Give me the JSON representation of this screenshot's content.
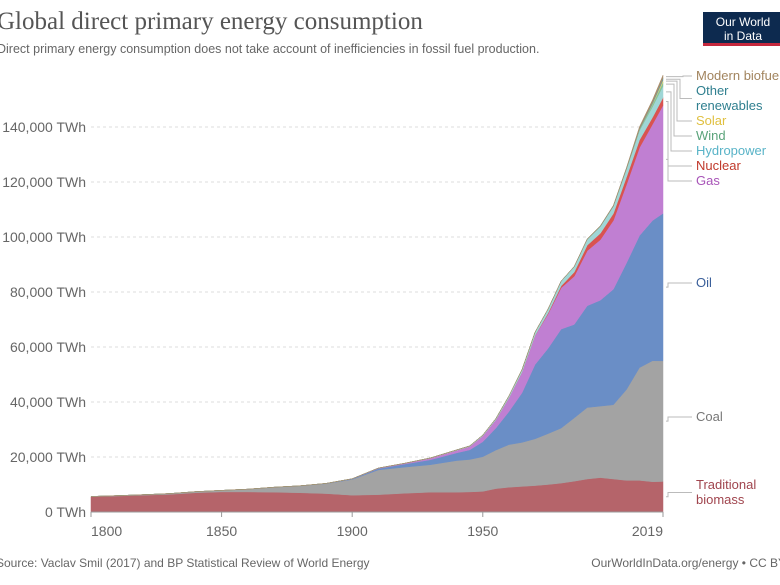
{
  "header": {
    "title": "Global direct primary energy consumption",
    "subtitle": "Direct primary energy consumption does not take account of inefficiencies in fossil fuel production.",
    "logo_text": [
      "Our World",
      "in Data"
    ]
  },
  "footer": {
    "source": "Source: Vaclav Smil (2017) and BP Statistical Review of World Energy",
    "credit": "OurWorldInData.org/energy • CC BY"
  },
  "chart_data": {
    "type": "area",
    "stacked": true,
    "title": "Global direct primary energy consumption",
    "xlim": [
      1800,
      2019
    ],
    "ylim": [
      0,
      160000
    ],
    "x_ticks": [
      "1800",
      "1850",
      "1900",
      "1950",
      "2019"
    ],
    "y_ticks": [
      0,
      20000,
      40000,
      60000,
      80000,
      100000,
      120000,
      140000
    ],
    "y_tick_labels": [
      "0 TWh",
      "20,000 TWh",
      "40,000 TWh",
      "60,000 TWh",
      "80,000 TWh",
      "100,000 TWh",
      "120,000 TWh",
      "140,000 TWh"
    ],
    "grid": "horizontal dotted",
    "legend_placement": "right (inline labels)",
    "x": [
      1800,
      1810,
      1820,
      1830,
      1840,
      1850,
      1860,
      1870,
      1880,
      1890,
      1900,
      1910,
      1920,
      1930,
      1940,
      1945,
      1950,
      1955,
      1960,
      1965,
      1970,
      1975,
      1980,
      1985,
      1990,
      1995,
      2000,
      2005,
      2010,
      2015,
      2019
    ],
    "series": [
      {
        "name": "Traditional biomass",
        "color": "#b5646a",
        "label_color": "#a0454e",
        "values": [
          5556,
          5800,
          6100,
          6400,
          7000,
          7300,
          7300,
          7200,
          7000,
          6700,
          6111,
          6300,
          6800,
          7200,
          7200,
          7300,
          7500,
          8500,
          9000,
          9300,
          9600,
          10000,
          10500,
          11200,
          12000,
          12500,
          12000,
          11500,
          11500,
          11000,
          11111
        ]
      },
      {
        "name": "Coal",
        "color": "#a3a3a3",
        "label_color": "#777777",
        "values": [
          97,
          150,
          200,
          300,
          400,
          569,
          1000,
          1800,
          2500,
          3600,
          5728,
          9000,
          9500,
          10000,
          11500,
          11800,
          12603,
          14000,
          15500,
          16000,
          17000,
          18500,
          20000,
          23000,
          26000,
          26000,
          27000,
          33000,
          41000,
          44000,
          43849
        ]
      },
      {
        "name": "Oil",
        "color": "#6a8ec6",
        "label_color": "#3a5f9a",
        "values": [
          0,
          0,
          0,
          0,
          0,
          0,
          0,
          10,
          30,
          80,
          181,
          500,
          1100,
          1800,
          2800,
          3500,
          5444,
          8000,
          12000,
          18000,
          27000,
          31000,
          36000,
          34000,
          37000,
          38500,
          42000,
          46000,
          48000,
          51000,
          53620
        ]
      },
      {
        "name": "Gas",
        "color": "#c07fd2",
        "label_color": "#a855b8",
        "values": [
          0,
          0,
          0,
          0,
          0,
          0,
          0,
          0,
          0,
          20,
          64,
          150,
          250,
          550,
          900,
          1200,
          2092,
          3000,
          5000,
          7500,
          10500,
          12500,
          15000,
          17500,
          20000,
          22000,
          25000,
          28500,
          32000,
          35000,
          39292
        ]
      },
      {
        "name": "Nuclear",
        "color": "#d95350",
        "label_color": "#c0392b",
        "values": [
          0,
          0,
          0,
          0,
          0,
          0,
          0,
          0,
          0,
          0,
          0,
          0,
          0,
          0,
          0,
          0,
          0,
          0,
          0,
          10,
          80,
          380,
          700,
          1500,
          2000,
          2300,
          2500,
          2700,
          2750,
          2500,
          2796
        ]
      },
      {
        "name": "Hydropower",
        "color": "#9fd6d6",
        "label_color": "#58b3c7",
        "values": [
          0,
          0,
          0,
          0,
          0,
          0,
          0,
          0,
          0,
          5,
          10,
          30,
          60,
          130,
          190,
          230,
          330,
          470,
          690,
          920,
          1180,
          1440,
          1730,
          1980,
          2150,
          2500,
          2650,
          2900,
          3450,
          3900,
          4222
        ]
      },
      {
        "name": "Wind",
        "color": "#86c29a",
        "label_color": "#5aa37a",
        "values": [
          0,
          0,
          0,
          0,
          0,
          0,
          0,
          0,
          0,
          0,
          0,
          0,
          0,
          0,
          0,
          0,
          0,
          0,
          0,
          0,
          0,
          0,
          0,
          1,
          4,
          8,
          31,
          104,
          346,
          831,
          1420
        ]
      },
      {
        "name": "Solar",
        "color": "#f2d46a",
        "label_color": "#e0c040",
        "values": [
          0,
          0,
          0,
          0,
          0,
          0,
          0,
          0,
          0,
          0,
          0,
          0,
          0,
          0,
          0,
          0,
          0,
          0,
          0,
          0,
          0,
          0,
          0,
          0,
          0,
          0,
          1,
          4,
          33,
          256,
          724
        ]
      },
      {
        "name": "Other renewables",
        "color": "#5f9fae",
        "label_color": "#2f7f8f",
        "values": [
          0,
          0,
          0,
          0,
          0,
          0,
          0,
          0,
          0,
          0,
          0,
          0,
          0,
          0,
          0,
          0,
          0,
          0,
          0,
          10,
          20,
          30,
          50,
          80,
          120,
          160,
          200,
          250,
          350,
          500,
          700
        ]
      },
      {
        "name": "Modern biofuels",
        "color": "#a98d6b",
        "label_color": "#a2845e",
        "values": [
          0,
          0,
          0,
          0,
          0,
          0,
          0,
          0,
          0,
          0,
          0,
          0,
          0,
          0,
          0,
          0,
          0,
          0,
          0,
          0,
          0,
          5,
          20,
          50,
          90,
          100,
          120,
          220,
          680,
          900,
          1143
        ]
      }
    ]
  }
}
